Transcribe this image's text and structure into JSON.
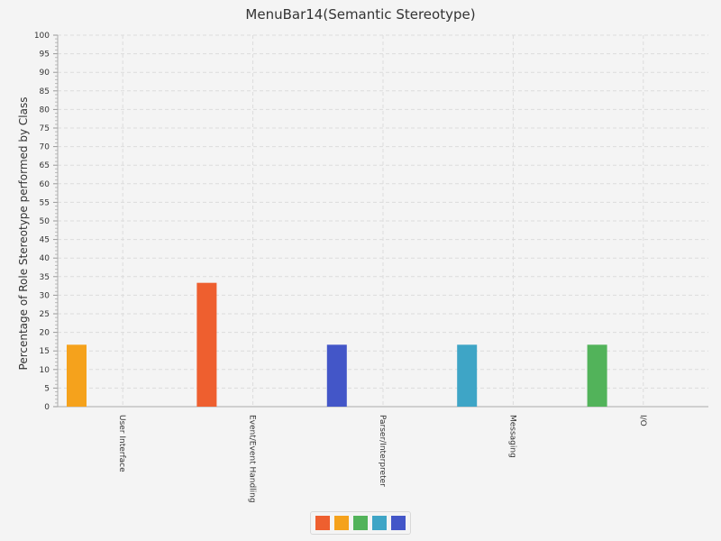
{
  "chart_data": {
    "type": "bar",
    "title": "MenuBar14(Semantic Stereotype)",
    "xlabel": "",
    "ylabel": "Percentage of Role Stereotype performed by Class",
    "ylim": [
      0,
      100
    ],
    "ytick_step": 5,
    "grid": true,
    "categories": [
      "User Interface",
      "Event/Event Handling",
      "Parser/Interpreter",
      "Messaging",
      "I/O"
    ],
    "values": [
      16.67,
      33.33,
      16.67,
      16.67,
      16.67
    ],
    "bar_colors": [
      "#f5a21c",
      "#ee5f2f",
      "#4356c8",
      "#3ea5c6",
      "#52b35a"
    ],
    "legend": {
      "placement": "bottom",
      "swatches": [
        "#ee5f2f",
        "#f5a21c",
        "#52b35a",
        "#3ea5c6",
        "#4356c8"
      ]
    }
  }
}
